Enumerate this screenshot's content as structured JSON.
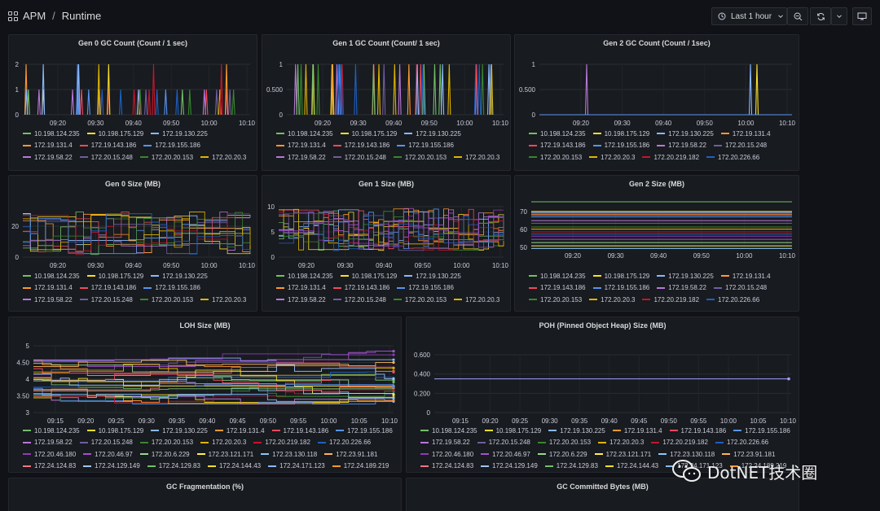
{
  "header": {
    "app": "APM",
    "page": "Runtime",
    "time_range": "Last 1 hour"
  },
  "colors": [
    "#73bf69",
    "#fade2a",
    "#8ab8ff",
    "#ff9830",
    "#f2495c",
    "#5794f2",
    "#b877d9",
    "#705da0",
    "#37872d",
    "#e0b400",
    "#c4162a",
    "#1f60c4",
    "#8f3bb8",
    "#a352cc",
    "#96d98d",
    "#ffee52",
    "#8ac7f9",
    "#ffb357",
    "#ff7383",
    "#a0c4ff"
  ],
  "panels": {
    "gen0_count": {
      "title": "Gen 0 GC Count (Count / 1 sec)",
      "y_ticks": [
        "2",
        "1",
        "0"
      ],
      "x_ticks": [
        "09:20",
        "09:30",
        "09:40",
        "09:50",
        "10:00",
        "10:10"
      ],
      "legend": [
        [
          "10.198.124.235",
          "10.198.175.129",
          "172.19.130.225"
        ],
        [
          "172.19.131.4",
          "172.19.143.186",
          "172.19.155.186"
        ],
        [
          "172.19.58.22",
          "172.20.15.248",
          "172.20.20.153",
          "172.20.20.3"
        ]
      ]
    },
    "gen1_count": {
      "title": "Gen 1 GC Count (Count/ 1 sec)",
      "y_ticks": [
        "1",
        "0.500",
        "0"
      ],
      "x_ticks": [
        "09:20",
        "09:30",
        "09:40",
        "09:50",
        "10:00",
        "10:10"
      ],
      "legend": [
        [
          "10.198.124.235",
          "10.198.175.129",
          "172.19.130.225"
        ],
        [
          "172.19.131.4",
          "172.19.143.186",
          "172.19.155.186"
        ],
        [
          "172.19.58.22",
          "172.20.15.248",
          "172.20.20.153",
          "172.20.20.3"
        ]
      ]
    },
    "gen2_count": {
      "title": "Gen 2 GC Count (Count / 1sec)",
      "y_ticks": [
        "1",
        "0.500",
        "0"
      ],
      "x_ticks": [
        "09:20",
        "09:30",
        "09:40",
        "09:50",
        "10:00",
        "10:10"
      ],
      "legend": [
        [
          "10.198.124.235",
          "10.198.175.129",
          "172.19.130.225",
          "172.19.131.4"
        ],
        [
          "172.19.143.186",
          "172.19.155.186",
          "172.19.58.22",
          "172.20.15.248"
        ],
        [
          "172.20.20.153",
          "172.20.20.3",
          "172.20.219.182",
          "172.20.226.66"
        ]
      ]
    },
    "gen0_size": {
      "title": "Gen 0 Size (MB)",
      "y_ticks": [
        "20",
        "0"
      ],
      "x_ticks": [
        "09:20",
        "09:30",
        "09:40",
        "09:50",
        "10:00",
        "10:10"
      ],
      "legend": [
        [
          "10.198.124.235",
          "10.198.175.129",
          "172.19.130.225"
        ],
        [
          "172.19.131.4",
          "172.19.143.186",
          "172.19.155.186"
        ],
        [
          "172.19.58.22",
          "172.20.15.248",
          "172.20.20.153",
          "172.20.20.3"
        ]
      ]
    },
    "gen1_size": {
      "title": "Gen 1 Size (MB)",
      "y_ticks": [
        "10",
        "5",
        "0"
      ],
      "x_ticks": [
        "09:20",
        "09:30",
        "09:40",
        "09:50",
        "10:00",
        "10:10"
      ],
      "legend": [
        [
          "10.198.124.235",
          "10.198.175.129",
          "172.19.130.225"
        ],
        [
          "172.19.131.4",
          "172.19.143.186",
          "172.19.155.186"
        ],
        [
          "172.19.58.22",
          "172.20.15.248",
          "172.20.20.153",
          "172.20.20.3"
        ]
      ]
    },
    "gen2_size": {
      "title": "Gen 2 Size (MB)",
      "y_ticks": [
        "70",
        "60",
        "50"
      ],
      "x_ticks": [
        "09:20",
        "09:30",
        "09:40",
        "09:50",
        "10:00",
        "10:10"
      ],
      "legend": [
        [
          "10.198.124.235",
          "10.198.175.129",
          "172.19.130.225",
          "172.19.131.4"
        ],
        [
          "172.19.143.186",
          "172.19.155.186",
          "172.19.58.22",
          "172.20.15.248"
        ],
        [
          "172.20.20.153",
          "172.20.20.3",
          "172.20.219.182",
          "172.20.226.66"
        ]
      ]
    },
    "loh_size": {
      "title": "LOH Size (MB)",
      "y_ticks": [
        "5",
        "4.50",
        "4",
        "3.50",
        "3"
      ],
      "x_ticks": [
        "09:15",
        "09:20",
        "09:25",
        "09:30",
        "09:35",
        "09:40",
        "09:45",
        "09:50",
        "09:55",
        "10:00",
        "10:05",
        "10:10"
      ],
      "legend": [
        [
          "10.198.124.235",
          "10.198.175.129",
          "172.19.130.225",
          "172.19.131.4",
          "172.19.143.186",
          "172.19.155.186"
        ],
        [
          "172.19.58.22",
          "172.20.15.248",
          "172.20.20.153",
          "172.20.20.3",
          "172.20.219.182",
          "172.20.226.66"
        ],
        [
          "172.20.46.180",
          "172.20.46.97",
          "172.20.6.229",
          "172.23.121.171",
          "172.23.130.118",
          "172.23.91.181"
        ],
        [
          "172.24.124.83",
          "172.24.129.149",
          "172.24.129.83",
          "172.24.144.43",
          "172.24.171.123",
          "172.24.189.219"
        ]
      ]
    },
    "poh_size": {
      "title": "POH (Pinned Object Heap) Size (MB)",
      "y_ticks": [
        "0.600",
        "0.400",
        "0.200",
        "0"
      ],
      "x_ticks": [
        "09:15",
        "09:20",
        "09:25",
        "09:30",
        "09:35",
        "09:40",
        "09:45",
        "09:50",
        "09:55",
        "10:00",
        "10:05",
        "10:10"
      ],
      "legend": [
        [
          "10.198.124.235",
          "10.198.175.129",
          "172.19.130.225",
          "172.19.131.4",
          "172.19.143.186",
          "172.19.155.186"
        ],
        [
          "172.19.58.22",
          "172.20.15.248",
          "172.20.20.153",
          "172.20.20.3",
          "172.20.219.182",
          "172.20.226.66"
        ],
        [
          "172.20.46.180",
          "172.20.46.97",
          "172.20.6.229",
          "172.23.121.171",
          "172.23.130.118",
          "172.23.91.181"
        ],
        [
          "172.24.124.83",
          "172.24.129.149",
          "172.24.129.83",
          "172.24.144.43",
          "172.24.171.123",
          "172.24.189.219"
        ]
      ]
    },
    "gc_frag": {
      "title": "GC Fragmentation (%)"
    },
    "gc_committed": {
      "title": "GC Committed Bytes (MB)"
    }
  },
  "watermark": {
    "text": "DotNET技术圈"
  }
}
